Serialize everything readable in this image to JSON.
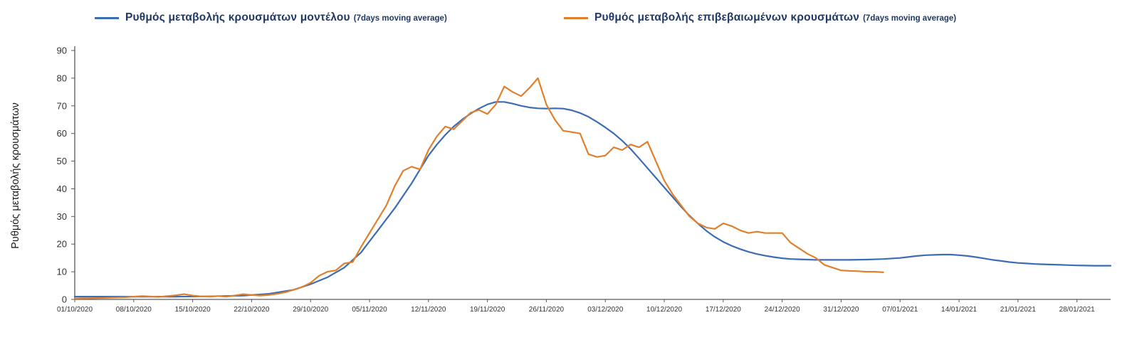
{
  "legend": {
    "items": [
      {
        "label": "Ρυθμός μεταβολής κρουσμάτων μοντέλου",
        "sub_label": "(7days moving average)"
      },
      {
        "label": "Ρυθμός μεταβολής επιβεβαιωμένων κρουσμάτων",
        "sub_label": "(7days moving average)"
      }
    ]
  },
  "chart_data": {
    "type": "line",
    "title": "",
    "xlabel": "",
    "ylabel": "Ρυθμός μεταβολής κρουσμάτων",
    "ylim": [
      0,
      90
    ],
    "yticks": [
      0,
      10,
      20,
      30,
      40,
      50,
      60,
      70,
      80,
      90
    ],
    "x_tick_labels": [
      "01/10/2020",
      "08/10/2020",
      "15/10/2020",
      "22/10/2020",
      "29/10/2020",
      "05/11/2020",
      "12/11/2020",
      "19/11/2020",
      "26/11/2020",
      "03/12/2020",
      "10/12/2020",
      "17/12/2020",
      "24/12/2020",
      "31/12/2020",
      "07/01/2021",
      "14/01/2021",
      "21/01/2021",
      "28/01/2021"
    ],
    "x_tick_interval_days": 7,
    "x_domain_days": [
      0,
      123
    ],
    "grid": false,
    "legend_position": "top",
    "axis_color": "#595959",
    "tick_label_color": "#333333",
    "series": [
      {
        "name": "Ρυθμός μεταβολής κρουσμάτων μοντέλου (7days moving average)",
        "color": "#3b6cb4",
        "points": [
          [
            0,
            1
          ],
          [
            4,
            1
          ],
          [
            8,
            1
          ],
          [
            12,
            1
          ],
          [
            16,
            1.1
          ],
          [
            20,
            1.4
          ],
          [
            23,
            2
          ],
          [
            26,
            3.5
          ],
          [
            28,
            5.5
          ],
          [
            30,
            8
          ],
          [
            32,
            11.5
          ],
          [
            34,
            17
          ],
          [
            35,
            21
          ],
          [
            36,
            25
          ],
          [
            37,
            29
          ],
          [
            38,
            33
          ],
          [
            39,
            37.5
          ],
          [
            40,
            42
          ],
          [
            41,
            47
          ],
          [
            42,
            52
          ],
          [
            43,
            56
          ],
          [
            44,
            59.5
          ],
          [
            45,
            62.5
          ],
          [
            46,
            65
          ],
          [
            47,
            67.2
          ],
          [
            48,
            69
          ],
          [
            49,
            70.5
          ],
          [
            50,
            71.4
          ],
          [
            51,
            71.4
          ],
          [
            52,
            70.8
          ],
          [
            53,
            70
          ],
          [
            54,
            69.4
          ],
          [
            55,
            69.1
          ],
          [
            56,
            69
          ],
          [
            57,
            69.1
          ],
          [
            58,
            69
          ],
          [
            59,
            68.4
          ],
          [
            60,
            67.4
          ],
          [
            61,
            66
          ],
          [
            62,
            64.2
          ],
          [
            63,
            62.2
          ],
          [
            64,
            60
          ],
          [
            65,
            57.4
          ],
          [
            66,
            54.4
          ],
          [
            67,
            51
          ],
          [
            68,
            47.5
          ],
          [
            69,
            44
          ],
          [
            70,
            40.5
          ],
          [
            71,
            37
          ],
          [
            72,
            33.5
          ],
          [
            73,
            30.3
          ],
          [
            74,
            27.4
          ],
          [
            75,
            24.8
          ],
          [
            76,
            22.6
          ],
          [
            77,
            20.8
          ],
          [
            78,
            19.4
          ],
          [
            79,
            18.2
          ],
          [
            80,
            17.2
          ],
          [
            81,
            16.4
          ],
          [
            82,
            15.8
          ],
          [
            83,
            15.3
          ],
          [
            84,
            14.9
          ],
          [
            85,
            14.6
          ],
          [
            86,
            14.5
          ],
          [
            87,
            14.4
          ],
          [
            88,
            14.3
          ],
          [
            90,
            14.3
          ],
          [
            92,
            14.3
          ],
          [
            94,
            14.4
          ],
          [
            96,
            14.6
          ],
          [
            98,
            15
          ],
          [
            100,
            15.7
          ],
          [
            101,
            16
          ],
          [
            102,
            16.1
          ],
          [
            103,
            16.2
          ],
          [
            104,
            16.2
          ],
          [
            105,
            16
          ],
          [
            106,
            15.7
          ],
          [
            107,
            15.3
          ],
          [
            108,
            14.8
          ],
          [
            109,
            14.3
          ],
          [
            110,
            13.9
          ],
          [
            111,
            13.5
          ],
          [
            112,
            13.2
          ],
          [
            113,
            13
          ],
          [
            114,
            12.8
          ],
          [
            115,
            12.7
          ],
          [
            116,
            12.6
          ],
          [
            117,
            12.5
          ],
          [
            118,
            12.4
          ],
          [
            119,
            12.3
          ],
          [
            121,
            12.2
          ],
          [
            123,
            12.2
          ]
        ]
      },
      {
        "name": "Ρυθμός μεταβολής επιβεβαιωμένων κρουσμάτων (7days moving average)",
        "color": "#e0802c",
        "points": [
          [
            0,
            0.3
          ],
          [
            2,
            0.4
          ],
          [
            4,
            0.6
          ],
          [
            6,
            0.8
          ],
          [
            8,
            1.2
          ],
          [
            10,
            0.9
          ],
          [
            12,
            1.5
          ],
          [
            13,
            1.9
          ],
          [
            14,
            1.4
          ],
          [
            15,
            1.1
          ],
          [
            16,
            1
          ],
          [
            17,
            1.2
          ],
          [
            18,
            1
          ],
          [
            19,
            1.4
          ],
          [
            20,
            1.9
          ],
          [
            21,
            1.6
          ],
          [
            22,
            1.4
          ],
          [
            23,
            1.6
          ],
          [
            24,
            2
          ],
          [
            25,
            2.6
          ],
          [
            26,
            3.5
          ],
          [
            27,
            4.5
          ],
          [
            28,
            6
          ],
          [
            29,
            8.5
          ],
          [
            30,
            10
          ],
          [
            31,
            10.5
          ],
          [
            32,
            13
          ],
          [
            33,
            13.5
          ],
          [
            34,
            19
          ],
          [
            35,
            24
          ],
          [
            36,
            29
          ],
          [
            37,
            34
          ],
          [
            38,
            41
          ],
          [
            39,
            46.5
          ],
          [
            40,
            48
          ],
          [
            41,
            47
          ],
          [
            42,
            54
          ],
          [
            43,
            59
          ],
          [
            44,
            62.5
          ],
          [
            45,
            61.5
          ],
          [
            46,
            64.5
          ],
          [
            47,
            67.5
          ],
          [
            48,
            68.5
          ],
          [
            49,
            67
          ],
          [
            50,
            70.5
          ],
          [
            51,
            77
          ],
          [
            52,
            75
          ],
          [
            53,
            73.5
          ],
          [
            54,
            76.5
          ],
          [
            55,
            80
          ],
          [
            56,
            70.5
          ],
          [
            57,
            65
          ],
          [
            58,
            61
          ],
          [
            59,
            60.5
          ],
          [
            60,
            60
          ],
          [
            61,
            52.5
          ],
          [
            62,
            51.5
          ],
          [
            63,
            52
          ],
          [
            64,
            55
          ],
          [
            65,
            54
          ],
          [
            66,
            56
          ],
          [
            67,
            55
          ],
          [
            68,
            57
          ],
          [
            69,
            50
          ],
          [
            70,
            43
          ],
          [
            71,
            38
          ],
          [
            72,
            34
          ],
          [
            73,
            30
          ],
          [
            74,
            27.5
          ],
          [
            75,
            26
          ],
          [
            76,
            25.5
          ],
          [
            77,
            27.5
          ],
          [
            78,
            26.5
          ],
          [
            79,
            25
          ],
          [
            80,
            24
          ],
          [
            81,
            24.5
          ],
          [
            82,
            24
          ],
          [
            83,
            24
          ],
          [
            84,
            24
          ],
          [
            85,
            20.5
          ],
          [
            86,
            18.5
          ],
          [
            87,
            16.5
          ],
          [
            88,
            15
          ],
          [
            89,
            12.5
          ],
          [
            90,
            11.5
          ],
          [
            91,
            10.5
          ],
          [
            92,
            10.3
          ],
          [
            93,
            10.2
          ],
          [
            94,
            10
          ],
          [
            95,
            10
          ],
          [
            96,
            9.8
          ]
        ]
      }
    ]
  }
}
